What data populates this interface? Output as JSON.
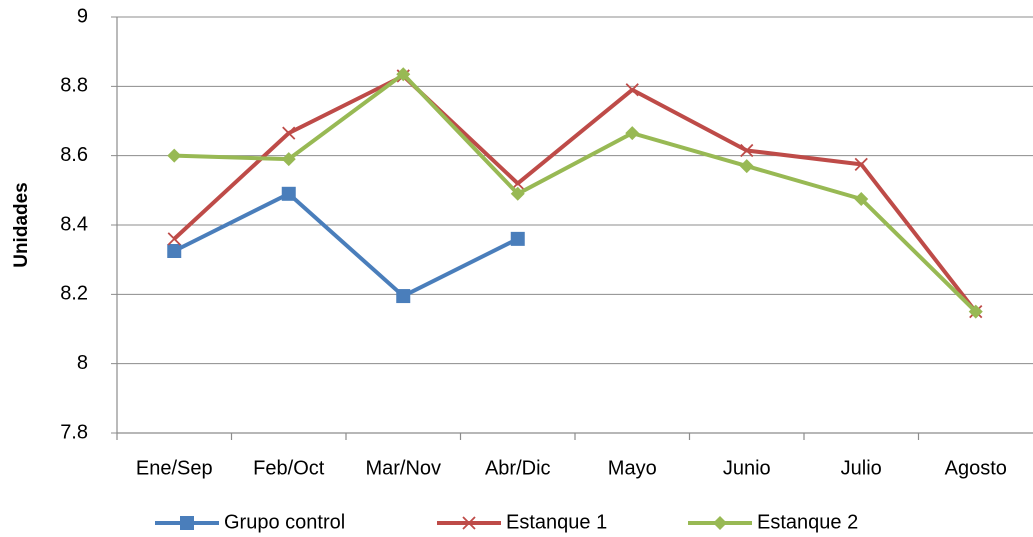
{
  "chart_data": {
    "type": "line",
    "y_label": "Unidades",
    "categories": [
      "Ene/Sep",
      "Feb/Oct",
      "Mar/Nov",
      "Abr/Dic",
      "Mayo",
      "Junio",
      "Julio",
      "Agosto"
    ],
    "series": [
      {
        "name": "Grupo control",
        "color": "#4a7ebb",
        "marker": "square",
        "values": [
          8.325,
          8.49,
          8.195,
          8.36,
          null,
          null,
          null,
          null
        ]
      },
      {
        "name": "Estanque 1",
        "color": "#be4b48",
        "marker": "x",
        "values": [
          8.36,
          8.665,
          8.83,
          8.52,
          8.79,
          8.615,
          8.575,
          8.15
        ]
      },
      {
        "name": "Estanque 2",
        "color": "#98b954",
        "marker": "diamond",
        "values": [
          8.6,
          8.59,
          8.835,
          8.49,
          8.665,
          8.57,
          8.475,
          8.15
        ]
      }
    ],
    "ylim": [
      7.8,
      9
    ],
    "yticks": [
      7.8,
      8,
      8.2,
      8.4,
      8.6,
      8.8,
      9
    ],
    "grid": true,
    "legend": "bottom"
  }
}
